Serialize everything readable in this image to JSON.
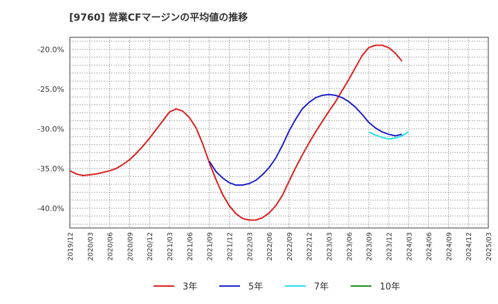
{
  "chart_data": {
    "type": "line",
    "title": "[9760]  営業CFマージンの平均値の推移",
    "xlabel": "",
    "ylabel": "",
    "ylim": [
      -42.5,
      -18.5
    ],
    "xlim": [
      "2019-12",
      "2025-03"
    ],
    "grid": true,
    "legend_position": "bottom",
    "yticks": [
      -20,
      -25,
      -30,
      -35,
      -40
    ],
    "ytick_labels": [
      "-20.0%",
      "-25.0%",
      "-30.0%",
      "-35.0%",
      "-40.0%"
    ],
    "xtick_labels": [
      "2019/12",
      "2020/03",
      "2020/06",
      "2020/09",
      "2020/12",
      "2021/03",
      "2021/06",
      "2021/09",
      "2021/12",
      "2022/03",
      "2022/06",
      "2022/09",
      "2022/12",
      "2023/03",
      "2023/06",
      "2023/09",
      "2023/12",
      "2024/03",
      "2024/06",
      "2024/09",
      "2024/12",
      "2025/03"
    ],
    "series": [
      {
        "name": "3年",
        "color": "#dd1c1c",
        "points": [
          [
            "2019-12",
            -35.3
          ],
          [
            "2020-01",
            -35.7
          ],
          [
            "2020-02",
            -35.9
          ],
          [
            "2020-03",
            -35.8
          ],
          [
            "2020-04",
            -35.7
          ],
          [
            "2020-05",
            -35.5
          ],
          [
            "2020-06",
            -35.3
          ],
          [
            "2020-07",
            -35.0
          ],
          [
            "2020-08",
            -34.5
          ],
          [
            "2020-09",
            -33.9
          ],
          [
            "2020-10",
            -33.1
          ],
          [
            "2020-11",
            -32.2
          ],
          [
            "2020-12",
            -31.2
          ],
          [
            "2021-01",
            -30.1
          ],
          [
            "2021-02",
            -29.0
          ],
          [
            "2021-03",
            -27.9
          ],
          [
            "2021-04",
            -27.5
          ],
          [
            "2021-05",
            -27.8
          ],
          [
            "2021-06",
            -28.6
          ],
          [
            "2021-07",
            -29.9
          ],
          [
            "2021-08",
            -31.9
          ],
          [
            "2021-09",
            -34.3
          ],
          [
            "2021-10",
            -36.4
          ],
          [
            "2021-11",
            -38.3
          ],
          [
            "2021-12",
            -39.7
          ],
          [
            "2022-01",
            -40.7
          ],
          [
            "2022-02",
            -41.3
          ],
          [
            "2022-03",
            -41.5
          ],
          [
            "2022-04",
            -41.5
          ],
          [
            "2022-05",
            -41.2
          ],
          [
            "2022-06",
            -40.6
          ],
          [
            "2022-07",
            -39.7
          ],
          [
            "2022-08",
            -38.4
          ],
          [
            "2022-09",
            -36.6
          ],
          [
            "2022-10",
            -34.9
          ],
          [
            "2022-11",
            -33.3
          ],
          [
            "2022-12",
            -31.8
          ],
          [
            "2023-01",
            -30.4
          ],
          [
            "2023-02",
            -29.1
          ],
          [
            "2023-03",
            -27.8
          ],
          [
            "2023-04",
            -26.6
          ],
          [
            "2023-05",
            -25.2
          ],
          [
            "2023-06",
            -23.8
          ],
          [
            "2023-07",
            -22.3
          ],
          [
            "2023-08",
            -20.8
          ],
          [
            "2023-09",
            -19.8
          ],
          [
            "2023-10",
            -19.5
          ],
          [
            "2023-11",
            -19.5
          ],
          [
            "2023-12",
            -19.8
          ],
          [
            "2024-01",
            -20.5
          ],
          [
            "2024-02",
            -21.5
          ]
        ]
      },
      {
        "name": "5年",
        "color": "#1c1ccc",
        "points": [
          [
            "2021-09",
            -34.1
          ],
          [
            "2021-10",
            -35.4
          ],
          [
            "2021-11",
            -36.2
          ],
          [
            "2021-12",
            -36.8
          ],
          [
            "2022-01",
            -37.1
          ],
          [
            "2022-02",
            -37.1
          ],
          [
            "2022-03",
            -36.9
          ],
          [
            "2022-04",
            -36.5
          ],
          [
            "2022-05",
            -35.8
          ],
          [
            "2022-06",
            -34.9
          ],
          [
            "2022-07",
            -33.7
          ],
          [
            "2022-08",
            -32.1
          ],
          [
            "2022-09",
            -30.3
          ],
          [
            "2022-10",
            -28.8
          ],
          [
            "2022-11",
            -27.5
          ],
          [
            "2022-12",
            -26.7
          ],
          [
            "2023-01",
            -26.1
          ],
          [
            "2023-02",
            -25.8
          ],
          [
            "2023-03",
            -25.7
          ],
          [
            "2023-04",
            -25.8
          ],
          [
            "2023-05",
            -26.1
          ],
          [
            "2023-06",
            -26.6
          ],
          [
            "2023-07",
            -27.3
          ],
          [
            "2023-08",
            -28.2
          ],
          [
            "2023-09",
            -29.2
          ],
          [
            "2023-10",
            -29.9
          ],
          [
            "2023-11",
            -30.4
          ],
          [
            "2023-12",
            -30.7
          ],
          [
            "2024-01",
            -30.9
          ],
          [
            "2024-02",
            -30.7
          ]
        ]
      },
      {
        "name": "7年",
        "color": "#22e0e8",
        "points": [
          [
            "2023-09",
            -30.4
          ],
          [
            "2023-10",
            -30.8
          ],
          [
            "2023-11",
            -31.1
          ],
          [
            "2023-12",
            -31.3
          ],
          [
            "2024-01",
            -31.2
          ],
          [
            "2024-02",
            -30.9
          ],
          [
            "2024-03",
            -30.4
          ]
        ]
      },
      {
        "name": "10年",
        "color": "#1c8c1c",
        "points": []
      }
    ]
  }
}
